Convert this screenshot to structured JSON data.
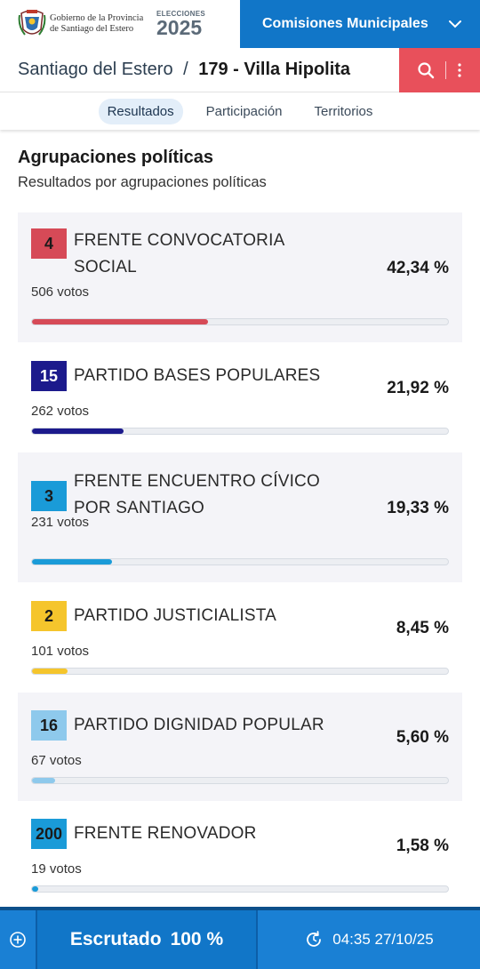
{
  "header": {
    "gov_line1": "Gobierno de la Provincia",
    "gov_line2": "de Santiago del Estero",
    "elections_label": "ELECCIONES",
    "elections_year": "2025",
    "category": "Comisiones Municipales"
  },
  "location": {
    "province": "Santiago del Estero",
    "separator": "/",
    "municipality": "179 - Villa Hipolita"
  },
  "tabs": [
    {
      "label": "Resultados",
      "active": true
    },
    {
      "label": "Participación",
      "active": false
    },
    {
      "label": "Territorios",
      "active": false
    }
  ],
  "section": {
    "title": "Agrupaciones políticas",
    "subtitle": "Resultados por agrupaciones políticas"
  },
  "parties": [
    {
      "number": "4",
      "name": "FRENTE CONVOCATORIA SOCIAL",
      "votes": "506 votos",
      "percent": "42,34 %",
      "share": 42.34,
      "color": "#d64a57",
      "text_color": "#1a1a1a"
    },
    {
      "number": "15",
      "name": "PARTIDO BASES POPULARES",
      "votes": "262 votos",
      "percent": "21,92 %",
      "share": 21.92,
      "color": "#1c1a8c",
      "text_color": "#ffffff"
    },
    {
      "number": "3",
      "name": "FRENTE ENCUENTRO CÍVICO POR SANTIAGO",
      "votes": "231 votos",
      "percent": "19,33 %",
      "share": 19.33,
      "color": "#1a9bd8",
      "text_color": "#1a1a1a"
    },
    {
      "number": "2",
      "name": "PARTIDO JUSTICIALISTA",
      "votes": "101 votos",
      "percent": "8,45 %",
      "share": 8.45,
      "color": "#f5c52c",
      "text_color": "#1a1a1a"
    },
    {
      "number": "16",
      "name": "PARTIDO DIGNIDAD POPULAR",
      "votes": "67 votos",
      "percent": "5,60 %",
      "share": 5.6,
      "color": "#8ec9ec",
      "text_color": "#1a1a1a"
    },
    {
      "number": "200",
      "name": "FRENTE RENOVADOR",
      "votes": "19 votos",
      "percent": "1,58 %",
      "share": 1.58,
      "color": "#1a9bd8",
      "text_color": "#1a1a1a"
    }
  ],
  "footer": {
    "status_label": "Escrutado",
    "status_value": "100 %",
    "timestamp": "04:35 27/10/25"
  },
  "icons": {
    "seal": "provincial-seal-icon",
    "chevron": "chevron-down-icon",
    "search": "search-icon",
    "menu": "kebab-menu-icon",
    "add": "plus-circle-icon",
    "refresh": "refresh-clock-icon"
  }
}
